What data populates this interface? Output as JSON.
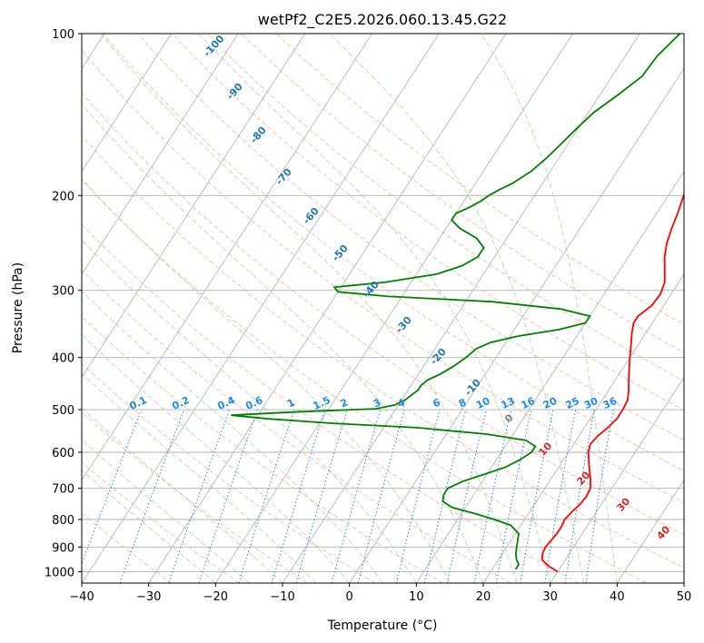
{
  "chart_data": {
    "type": "line",
    "title": "wetPf2_C2E5.2026.060.13.45.G22",
    "xlabel": "Temperature (°C)",
    "ylabel": "Pressure (hPa)",
    "xlim": [
      -40,
      50
    ],
    "ylim": [
      1050,
      100
    ],
    "y_scale": "log",
    "grid": true,
    "x_ticks": [
      "−40",
      "−30",
      "−20",
      "−10",
      "0",
      "10",
      "20",
      "30",
      "40",
      "50"
    ],
    "x_tick_values": [
      -40,
      -30,
      -20,
      -10,
      0,
      10,
      20,
      30,
      40,
      50
    ],
    "y_ticks": [
      "100",
      "200",
      "300",
      "400",
      "500",
      "600",
      "700",
      "800",
      "900",
      "1000"
    ],
    "y_tick_values": [
      100,
      200,
      300,
      400,
      500,
      600,
      700,
      800,
      900,
      1000
    ],
    "series": [
      {
        "role": "temperature",
        "color": "#ff0000",
        "points": [
          [
            1000,
            30.0
          ],
          [
            975,
            28.0
          ],
          [
            950,
            26.5
          ],
          [
            925,
            26.0
          ],
          [
            900,
            25.8
          ],
          [
            875,
            26.0
          ],
          [
            850,
            26.2
          ],
          [
            825,
            26.2
          ],
          [
            800,
            26.0
          ],
          [
            775,
            26.3
          ],
          [
            750,
            26.8
          ],
          [
            725,
            27.0
          ],
          [
            700,
            26.8
          ],
          [
            675,
            26.0
          ],
          [
            650,
            25.0
          ],
          [
            625,
            24.0
          ],
          [
            600,
            23.0
          ],
          [
            580,
            22.5
          ],
          [
            560,
            22.8
          ],
          [
            540,
            23.5
          ],
          [
            520,
            24.0
          ],
          [
            500,
            24.0
          ],
          [
            480,
            23.8
          ],
          [
            460,
            23.0
          ],
          [
            440,
            22.0
          ],
          [
            420,
            21.0
          ],
          [
            400,
            20.0
          ],
          [
            380,
            19.0
          ],
          [
            360,
            17.9
          ],
          [
            345,
            17.2
          ],
          [
            335,
            17.2
          ],
          [
            320,
            18.2
          ],
          [
            305,
            18.4
          ],
          [
            290,
            17.9
          ],
          [
            275,
            16.7
          ],
          [
            260,
            15.4
          ],
          [
            245,
            14.4
          ],
          [
            230,
            13.7
          ],
          [
            215,
            13.1
          ],
          [
            200,
            12.3
          ],
          [
            185,
            11.6
          ],
          [
            170,
            11.6
          ],
          [
            155,
            11.8
          ],
          [
            145,
            11.6
          ],
          [
            135,
            10.8
          ],
          [
            125,
            9.2
          ],
          [
            115,
            8.6
          ],
          [
            105,
            8.6
          ],
          [
            100,
            8.6
          ]
        ]
      },
      {
        "role": "dewpoint",
        "color": "#008000",
        "points": [
          [
            990,
            23.5
          ],
          [
            970,
            23.5
          ],
          [
            950,
            22.7
          ],
          [
            925,
            22.0
          ],
          [
            900,
            21.5
          ],
          [
            875,
            21.0
          ],
          [
            850,
            20.5
          ],
          [
            820,
            18.5
          ],
          [
            800,
            15.5
          ],
          [
            780,
            12.0
          ],
          [
            760,
            8.0
          ],
          [
            740,
            6.0
          ],
          [
            720,
            5.5
          ],
          [
            700,
            5.5
          ],
          [
            680,
            7.0
          ],
          [
            660,
            9.5
          ],
          [
            640,
            12.0
          ],
          [
            620,
            13.5
          ],
          [
            600,
            14.5
          ],
          [
            585,
            14.5
          ],
          [
            570,
            12.5
          ],
          [
            555,
            6.0
          ],
          [
            540,
            -5.0
          ],
          [
            530,
            -18.0
          ],
          [
            520,
            -28.0
          ],
          [
            512,
            -34.0
          ],
          [
            505,
            -25.0
          ],
          [
            498,
            -13.0
          ],
          [
            490,
            -10.5
          ],
          [
            480,
            -9.5
          ],
          [
            470,
            -9.0
          ],
          [
            460,
            -8.5
          ],
          [
            450,
            -8.5
          ],
          [
            440,
            -8.0
          ],
          [
            430,
            -6.8
          ],
          [
            415,
            -5.5
          ],
          [
            400,
            -4.5
          ],
          [
            385,
            -3.8
          ],
          [
            375,
            -2.3
          ],
          [
            365,
            1.2
          ],
          [
            355,
            6.6
          ],
          [
            345,
            10.0
          ],
          [
            335,
            10.0
          ],
          [
            325,
            5.0
          ],
          [
            315,
            -6.0
          ],
          [
            308,
            -22.0
          ],
          [
            302,
            -30.0
          ],
          [
            296,
            -31.0
          ],
          [
            290,
            -24.0
          ],
          [
            280,
            -17.0
          ],
          [
            270,
            -14.0
          ],
          [
            260,
            -12.5
          ],
          [
            250,
            -12.5
          ],
          [
            240,
            -14.5
          ],
          [
            230,
            -18.0
          ],
          [
            222,
            -20.0
          ],
          [
            216,
            -20.0
          ],
          [
            210,
            -18.5
          ],
          [
            205,
            -17.5
          ],
          [
            200,
            -16.8
          ],
          [
            195,
            -15.8
          ],
          [
            190,
            -14.5
          ],
          [
            180,
            -12.8
          ],
          [
            170,
            -11.8
          ],
          [
            160,
            -11.0
          ],
          [
            150,
            -10.2
          ],
          [
            140,
            -9.2
          ],
          [
            130,
            -7.3
          ],
          [
            120,
            -5.5
          ],
          [
            110,
            -5.2
          ],
          [
            100,
            -4.0
          ]
        ]
      }
    ],
    "dry_adiabat_labels": [
      "-100",
      "-90",
      "-80",
      "-70",
      "-60",
      "-50",
      "-40",
      "-30",
      "-20",
      "-10",
      "0",
      "10",
      "20",
      "30",
      "40"
    ],
    "mixing_ratio_labels": [
      "0.1",
      "0.2",
      "0.4",
      "0.6",
      "1",
      "1.5",
      "2",
      "3",
      "4",
      "6",
      "8",
      "10",
      "13",
      "16",
      "20",
      "25",
      "30",
      "36"
    ],
    "colors": {
      "temperature": "#ff0000",
      "dewpoint": "#008000",
      "isotherm": "#b0b0b0",
      "isobar": "#b0b0b0",
      "dry_adiabat": "#f4a582",
      "moist_adiabat": "#8fd08f",
      "mixing_ratio": "#1e88e5",
      "cold_label": "#1f77b4",
      "warm_label": "#d62728"
    }
  }
}
